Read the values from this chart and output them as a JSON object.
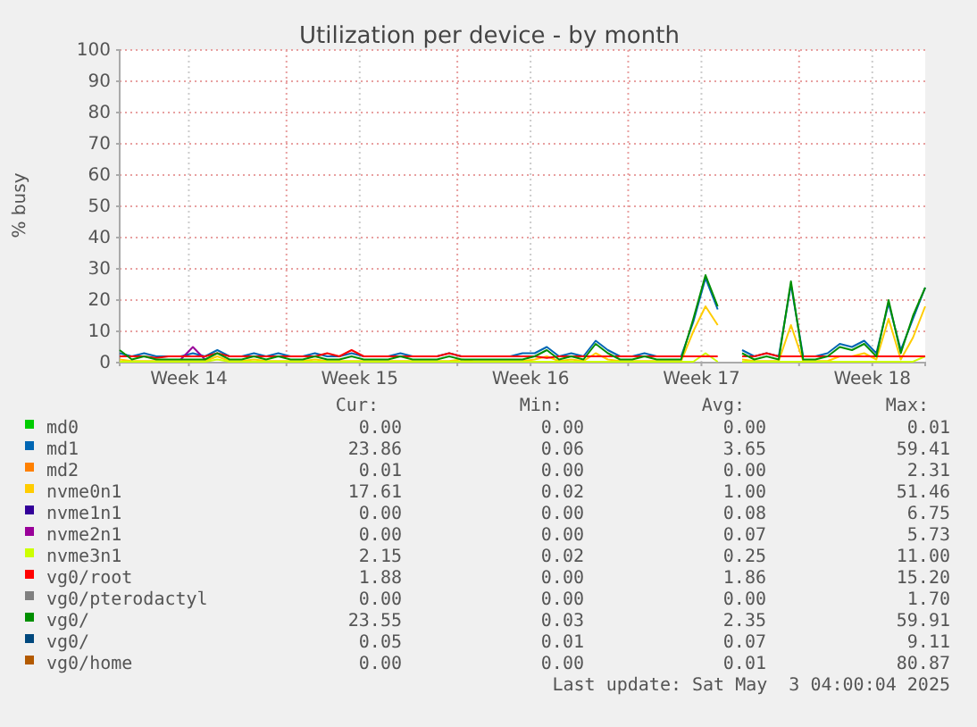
{
  "chart_data": {
    "type": "line",
    "title": "Utilization per device - by month",
    "ylabel": "% busy",
    "x": [
      "2025-03-31T04:00",
      "2025-03-31T16:00",
      "2025-04-01T04:00",
      "2025-04-01T16:00",
      "2025-04-02T04:00",
      "2025-04-02T16:00",
      "2025-04-03T04:00",
      "2025-04-03T16:00",
      "2025-04-04T04:00",
      "2025-04-04T16:00",
      "2025-04-05T04:00",
      "2025-04-05T16:00",
      "2025-04-06T04:00",
      "2025-04-06T16:00",
      "2025-04-07T04:00",
      "2025-04-07T16:00",
      "2025-04-08T04:00",
      "2025-04-08T16:00",
      "2025-04-09T04:00",
      "2025-04-09T16:00",
      "2025-04-10T04:00",
      "2025-04-10T16:00",
      "2025-04-11T04:00",
      "2025-04-11T16:00",
      "2025-04-12T04:00",
      "2025-04-12T16:00",
      "2025-04-13T04:00",
      "2025-04-13T16:00",
      "2025-04-14T04:00",
      "2025-04-14T16:00",
      "2025-04-15T04:00",
      "2025-04-15T16:00",
      "2025-04-16T04:00",
      "2025-04-16T16:00",
      "2025-04-17T04:00",
      "2025-04-17T16:00",
      "2025-04-18T04:00",
      "2025-04-18T16:00",
      "2025-04-19T04:00",
      "2025-04-19T16:00",
      "2025-04-20T04:00",
      "2025-04-20T16:00",
      "2025-04-21T04:00",
      "2025-04-21T16:00",
      "2025-04-22T04:00",
      "2025-04-22T16:00",
      "2025-04-23T04:00",
      "2025-04-23T16:00",
      "2025-04-24T04:00",
      "2025-04-24T16:00",
      "2025-04-25T04:00",
      "2025-04-25T16:00",
      "2025-04-26T04:00",
      "2025-04-26T16:00",
      "2025-04-27T04:00",
      "2025-04-27T16:00",
      "2025-04-28T04:00",
      "2025-04-28T16:00",
      "2025-04-29T04:00",
      "2025-04-29T16:00",
      "2025-04-30T04:00",
      "2025-04-30T16:00",
      "2025-05-01T04:00",
      "2025-05-01T16:00",
      "2025-05-02T04:00",
      "2025-05-02T16:00",
      "2025-05-03T04:00"
    ],
    "xlim": [
      "2025-03-31T04:00",
      "2025-05-03T04:00"
    ],
    "xticks": [
      {
        "value": "2025-04-03T00:00",
        "label": "Week 14"
      },
      {
        "value": "2025-04-07T00:00",
        "label": null
      },
      {
        "value": "2025-04-10T00:00",
        "label": "Week 15"
      },
      {
        "value": "2025-04-14T00:00",
        "label": null
      },
      {
        "value": "2025-04-17T00:00",
        "label": "Week 16"
      },
      {
        "value": "2025-04-21T00:00",
        "label": null
      },
      {
        "value": "2025-04-24T00:00",
        "label": "Week 17"
      },
      {
        "value": "2025-04-28T00:00",
        "label": null
      },
      {
        "value": "2025-05-01T00:00",
        "label": "Week 18"
      }
    ],
    "ylim": [
      0,
      100
    ],
    "yticks": [
      0,
      10,
      20,
      30,
      40,
      50,
      60,
      70,
      80,
      90,
      100
    ],
    "grid": true,
    "legend": "bottom",
    "series": [
      {
        "name": "md0",
        "color": "#00cc00",
        "values": [
          null,
          null,
          null,
          null,
          null,
          null,
          null,
          null,
          null,
          null,
          null,
          null,
          null,
          null,
          null,
          null,
          null,
          null,
          null,
          null,
          null,
          null,
          null,
          null,
          null,
          null,
          null,
          null,
          null,
          null,
          null,
          null,
          null,
          null,
          null,
          null,
          null,
          null,
          null,
          null,
          null,
          null,
          null,
          null,
          null,
          null,
          null,
          null,
          null,
          null,
          null,
          null,
          null,
          null,
          null,
          null,
          null,
          null,
          null,
          null,
          null,
          null,
          null,
          null,
          null,
          null,
          null
        ]
      },
      {
        "name": "md1",
        "color": "#0066b3",
        "values": [
          3,
          2,
          3,
          2,
          2,
          2,
          3,
          2,
          4,
          2,
          2,
          3,
          2,
          3,
          2,
          2,
          3,
          2,
          2,
          3,
          2,
          2,
          2,
          3,
          2,
          2,
          2,
          3,
          2,
          2,
          2,
          2,
          2,
          3,
          3,
          5,
          2,
          3,
          2,
          7,
          4,
          2,
          2,
          3,
          2,
          2,
          2,
          13,
          27,
          17,
          null,
          4,
          2,
          3,
          2,
          25,
          2,
          2,
          3,
          6,
          5,
          7,
          3,
          19,
          4,
          14,
          24
        ]
      },
      {
        "name": "md2",
        "color": "#ff8000",
        "values": [
          null,
          null,
          null,
          null,
          null,
          null,
          null,
          null,
          null,
          null,
          null,
          null,
          null,
          null,
          null,
          null,
          null,
          null,
          null,
          null,
          null,
          null,
          null,
          null,
          null,
          null,
          null,
          null,
          null,
          null,
          null,
          null,
          null,
          null,
          null,
          null,
          null,
          null,
          null,
          null,
          null,
          null,
          null,
          null,
          null,
          null,
          null,
          null,
          null,
          null,
          null,
          null,
          null,
          null,
          null,
          null,
          null,
          null,
          null,
          null,
          null,
          null,
          null,
          null,
          null,
          null,
          null
        ]
      },
      {
        "name": "nvme0n1",
        "color": "#ffcc00",
        "values": [
          1,
          0.5,
          0.5,
          0.5,
          0.5,
          0.5,
          0.5,
          0.5,
          2,
          0.5,
          0.5,
          1,
          0.5,
          0.5,
          0.5,
          0.5,
          1,
          0.5,
          0.5,
          0.5,
          0.5,
          0.5,
          0.5,
          0.5,
          0.5,
          0.5,
          0.5,
          0.5,
          1,
          0.5,
          0.5,
          0.5,
          0.5,
          0.5,
          1,
          2,
          0.5,
          1,
          0.5,
          3,
          1,
          0.5,
          0.5,
          0.5,
          0.5,
          0.5,
          0.5,
          10,
          18,
          12,
          null,
          1,
          0.5,
          0.5,
          0.5,
          12,
          0.5,
          0.5,
          0.5,
          2,
          2,
          3,
          1,
          14,
          1,
          8,
          18
        ]
      },
      {
        "name": "nvme1n1",
        "color": "#330099",
        "values": [
          null,
          null,
          null,
          null,
          null,
          null,
          null,
          null,
          null,
          null,
          null,
          null,
          null,
          null,
          null,
          null,
          null,
          null,
          null,
          null,
          null,
          null,
          null,
          null,
          null,
          null,
          null,
          null,
          null,
          null,
          null,
          null,
          null,
          null,
          null,
          null,
          null,
          null,
          null,
          null,
          null,
          null,
          null,
          null,
          null,
          null,
          null,
          null,
          null,
          null,
          null,
          null,
          null,
          null,
          null,
          null,
          null,
          null,
          null,
          null,
          null,
          null,
          null,
          null,
          null,
          null,
          null
        ]
      },
      {
        "name": "nvme2n1",
        "color": "#990099",
        "values": [
          null,
          null,
          null,
          null,
          null,
          1,
          5,
          1,
          null,
          null,
          null,
          null,
          null,
          null,
          null,
          null,
          null,
          null,
          null,
          null,
          null,
          null,
          null,
          null,
          null,
          null,
          null,
          null,
          null,
          null,
          null,
          null,
          null,
          null,
          null,
          null,
          null,
          null,
          null,
          null,
          null,
          null,
          null,
          null,
          null,
          null,
          null,
          null,
          null,
          null,
          null,
          null,
          null,
          null,
          null,
          null,
          null,
          null,
          null,
          null,
          null,
          null,
          null,
          null,
          null,
          null,
          null
        ]
      },
      {
        "name": "nvme3n1",
        "color": "#ccff00",
        "values": [
          0.3,
          0.3,
          0.3,
          0.3,
          0.3,
          0.3,
          0.3,
          0.3,
          1,
          0.3,
          0.3,
          0.3,
          0.3,
          0.3,
          0.3,
          0.3,
          0.3,
          0.3,
          0.3,
          0.3,
          0.3,
          0.3,
          0.3,
          0.3,
          0.3,
          0.3,
          0.3,
          0.3,
          0.3,
          0.3,
          0.3,
          0.3,
          0.3,
          0.3,
          0.3,
          0.3,
          0.3,
          0.3,
          0.3,
          0.3,
          0.3,
          0.3,
          0.3,
          0.3,
          0.3,
          0.3,
          0.3,
          0.3,
          3,
          0.3,
          null,
          0.3,
          0.3,
          0.3,
          0.3,
          0.3,
          0.3,
          0.3,
          0.3,
          0.3,
          0.3,
          0.3,
          0.3,
          0.3,
          0.3,
          0.3,
          2
        ]
      },
      {
        "name": "vg0/root",
        "color": "#ff0000",
        "values": [
          2,
          2,
          2,
          1.5,
          2,
          2,
          2,
          2,
          3,
          2,
          2,
          2,
          2,
          2,
          2,
          2,
          2,
          3,
          2,
          4,
          2,
          2,
          2,
          2,
          2,
          2,
          2,
          3,
          2,
          2,
          2,
          2,
          2,
          2,
          2,
          1.5,
          2,
          2,
          2,
          2,
          2,
          2,
          2,
          2,
          2,
          2,
          2,
          2,
          2,
          2,
          null,
          2,
          2,
          3,
          2,
          2,
          2,
          2,
          2,
          2,
          2,
          2,
          2,
          2,
          2,
          2,
          2
        ]
      },
      {
        "name": "vg0/pterodactyl",
        "color": "#808080",
        "values": [
          null,
          null,
          null,
          null,
          null,
          null,
          null,
          null,
          null,
          null,
          null,
          null,
          null,
          null,
          null,
          null,
          null,
          null,
          null,
          null,
          null,
          null,
          null,
          null,
          null,
          null,
          null,
          null,
          null,
          null,
          null,
          null,
          null,
          null,
          null,
          null,
          null,
          null,
          null,
          null,
          null,
          null,
          null,
          null,
          null,
          null,
          null,
          null,
          null,
          null,
          null,
          null,
          null,
          null,
          null,
          null,
          null,
          null,
          null,
          null,
          null,
          null,
          null,
          null,
          null,
          null,
          null
        ]
      },
      {
        "name": "vg0/",
        "color": "#008f00",
        "values": [
          4,
          1,
          2,
          1,
          1,
          1,
          1,
          1,
          3,
          1,
          1,
          2,
          1,
          2,
          1,
          1,
          2,
          1,
          1,
          2,
          1,
          1,
          1,
          2,
          1,
          1,
          1,
          2,
          1,
          1,
          1,
          1,
          1,
          1,
          2,
          4,
          1,
          2,
          1,
          6,
          3,
          1,
          1,
          2,
          1,
          1,
          1,
          14,
          28,
          18,
          null,
          3,
          1,
          2,
          1,
          26,
          1,
          1,
          2,
          5,
          4,
          6,
          2,
          20,
          3,
          15,
          24
        ]
      },
      {
        "name": "vg0/",
        "color": "#00487d",
        "values": [
          null,
          null,
          null,
          null,
          null,
          null,
          null,
          null,
          null,
          null,
          null,
          null,
          null,
          null,
          null,
          null,
          null,
          null,
          null,
          null,
          null,
          null,
          null,
          null,
          null,
          null,
          null,
          null,
          null,
          null,
          null,
          null,
          null,
          null,
          null,
          null,
          null,
          null,
          null,
          null,
          null,
          null,
          null,
          null,
          null,
          null,
          null,
          null,
          null,
          null,
          null,
          null,
          null,
          null,
          null,
          null,
          null,
          null,
          null,
          null,
          null,
          null,
          null,
          null,
          null,
          null,
          null
        ]
      },
      {
        "name": "vg0/home",
        "color": "#b35a00",
        "values": [
          null,
          null,
          null,
          null,
          null,
          null,
          null,
          null,
          null,
          null,
          null,
          null,
          null,
          null,
          null,
          null,
          null,
          null,
          null,
          null,
          null,
          null,
          null,
          null,
          null,
          null,
          null,
          null,
          null,
          null,
          null,
          null,
          null,
          null,
          null,
          null,
          null,
          null,
          null,
          null,
          null,
          null,
          null,
          null,
          null,
          null,
          null,
          null,
          null,
          null,
          null,
          null,
          null,
          null,
          null,
          null,
          null,
          null,
          null,
          null,
          null,
          null,
          null,
          null,
          null,
          null,
          null
        ]
      }
    ],
    "annotations": [
      "Cur:",
      "Min:",
      "Avg:",
      "Max:",
      "0.00",
      "0.00",
      "0.00",
      "0.01",
      "23.86",
      "0.06",
      "3.65",
      "59.41",
      "0.01",
      "0.00",
      "0.00",
      "2.31",
      "17.61",
      "0.02",
      "1.00",
      "51.46",
      "0.00",
      "0.00",
      "0.08",
      "6.75",
      "0.00",
      "0.00",
      "0.07",
      "5.73",
      "2.15",
      "0.02",
      "0.25",
      "11.00",
      "1.88",
      "0.00",
      "1.86",
      "15.20",
      "0.00",
      "0.00",
      "0.00",
      "1.70",
      "23.55",
      "0.03",
      "2.35",
      "59.91",
      "0.05",
      "0.01",
      "0.07",
      "9.11",
      "0.00",
      "0.00",
      "0.01",
      "80.87",
      "Last update: Sat May  3 04:00:04 2025"
    ]
  }
}
